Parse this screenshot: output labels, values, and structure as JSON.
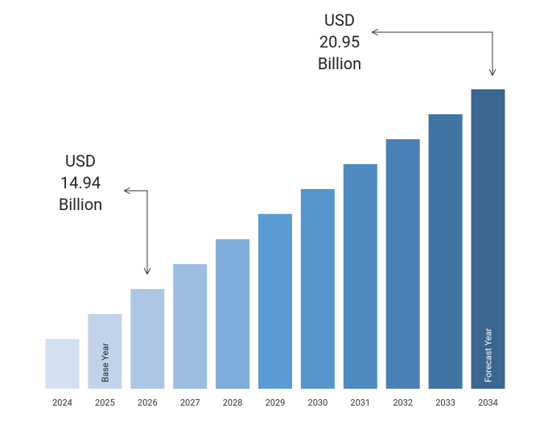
{
  "chart_data": {
    "type": "bar",
    "categories": [
      "2024",
      "2025",
      "2026",
      "2027",
      "2028",
      "2029",
      "2030",
      "2031",
      "2032",
      "2033",
      "2034"
    ],
    "values": [
      13.44,
      14.19,
      14.94,
      15.69,
      16.44,
      17.2,
      17.95,
      18.7,
      19.45,
      20.2,
      20.95
    ],
    "value_labels": [
      null,
      null,
      "USD 14.94 Billion",
      null,
      null,
      null,
      null,
      null,
      null,
      null,
      "USD 20.95 Billion"
    ],
    "bar_labels": [
      null,
      "Base Year",
      null,
      null,
      null,
      null,
      null,
      null,
      null,
      null,
      "Forecast Year"
    ],
    "colors": [
      "#d3e0ef",
      "#c0d3ea",
      "#adc6e6",
      "#9bbde2",
      "#7eaddc",
      "#5b9bd5",
      "#5595cc",
      "#4f8ac0",
      "#4a80b5",
      "#4273a5",
      "#3a6690"
    ],
    "ylim": [
      11.94,
      20.95
    ]
  }
}
